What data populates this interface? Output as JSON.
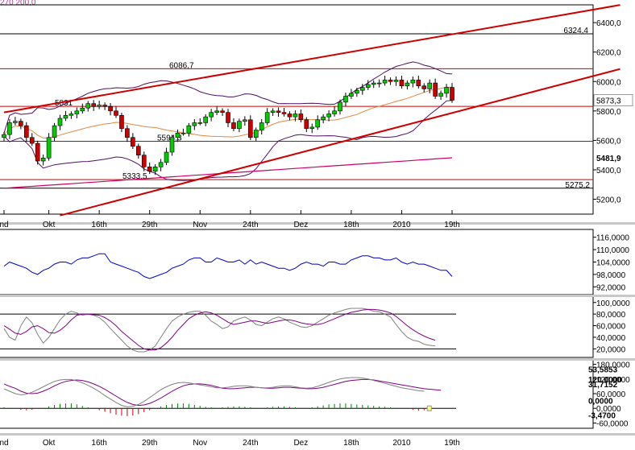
{
  "chart_data": [
    {
      "type": "candlestick",
      "header_text": "270  200,0",
      "header_color": "#c0309a",
      "y_ticks": [
        "6400,0",
        "6200,0",
        "6000,0",
        "5800,0",
        "5600,0",
        "5400,0",
        "5200,0"
      ],
      "y_tick_values": [
        6400,
        6200,
        6000,
        5800,
        5600,
        5400,
        5200
      ],
      "ylim": [
        5110,
        6510
      ],
      "x_ticks": [
        "nd",
        "Okt",
        "16th",
        "29th",
        "Nov",
        "24th",
        "Dez",
        "18th",
        "2010",
        "19th"
      ],
      "x_tick_index": [
        0,
        8,
        17,
        26,
        35,
        44,
        53,
        62,
        71,
        80
      ],
      "last_price_label": "5873,3",
      "ma200_label": "5481,9",
      "ma200_color": "#cc0066",
      "horizontal_levels": [
        {
          "value": 6324.4,
          "label": "6324,4",
          "color": "#000000"
        },
        {
          "value": 6086.7,
          "label": "6086,7",
          "color": "#cc0000"
        },
        {
          "value": 5831,
          "label": "5831",
          "color": "#cc0000"
        },
        {
          "value": 5594.3,
          "label": "5594,3",
          "color": "#cc0000"
        },
        {
          "value": 5333.5,
          "label": "5333,5",
          "color": "#cc0000"
        },
        {
          "value": 5275.2,
          "label": "5275,2",
          "color": "#000000"
        }
      ],
      "trend_lines": [
        {
          "from": [
            0,
            5790
          ],
          "to": [
            110,
            6520
          ],
          "color": "#cc0000"
        },
        {
          "from": [
            10,
            5090
          ],
          "to": [
            110,
            6085
          ],
          "color": "#cc0000"
        }
      ],
      "closes": [
        5640,
        5720,
        5730,
        5700,
        5620,
        5580,
        5460,
        5480,
        5620,
        5700,
        5750,
        5770,
        5780,
        5800,
        5820,
        5850,
        5830,
        5840,
        5830,
        5800,
        5770,
        5680,
        5620,
        5560,
        5500,
        5420,
        5390,
        5420,
        5450,
        5520,
        5620,
        5650,
        5650,
        5700,
        5720,
        5720,
        5760,
        5790,
        5800,
        5790,
        5720,
        5680,
        5730,
        5740,
        5620,
        5670,
        5720,
        5790,
        5800,
        5790,
        5780,
        5760,
        5780,
        5740,
        5680,
        5690,
        5740,
        5760,
        5780,
        5800,
        5860,
        5900,
        5920,
        5940,
        5960,
        5980,
        5990,
        5990,
        6010,
        6000,
        6010,
        5970,
        5990,
        6010,
        5970,
        5950,
        5990,
        5900,
        5920,
        5960,
        5873
      ]
    },
    {
      "type": "line",
      "indicator": "volume",
      "y_ticks": [
        "116,0000",
        "110,0000",
        "104,0000",
        "98,0000",
        "92,0000"
      ],
      "y_tick_values": [
        116,
        110,
        104,
        98,
        92
      ],
      "ylim": [
        89,
        119
      ],
      "line_color": "#0000cc",
      "values": [
        102,
        104,
        103,
        102,
        101,
        99,
        98,
        100,
        101,
        103,
        104,
        104,
        103,
        105,
        106,
        106,
        107,
        108,
        108,
        104,
        103,
        102,
        101,
        100,
        99,
        97,
        96,
        97,
        98,
        99,
        101,
        102,
        103,
        105,
        106,
        106,
        104,
        104,
        106,
        105,
        104,
        104,
        105,
        103,
        105,
        103,
        104,
        103,
        102,
        101,
        101,
        100,
        101,
        103,
        104,
        103,
        103,
        102,
        104,
        104,
        103,
        103,
        105,
        106,
        107,
        107,
        106,
        106,
        105,
        105,
        106,
        104,
        103,
        104,
        103,
        103,
        102,
        101,
        100,
        100,
        97
      ]
    },
    {
      "type": "line",
      "indicator": "stochastic",
      "y_ticks": [
        "100,0000",
        "80,0000",
        "60,0000",
        "40,0000",
        "20,0000"
      ],
      "y_tick_values": [
        100,
        80,
        60,
        40,
        20
      ],
      "ylim": [
        8,
        108
      ],
      "levels": [
        80,
        20
      ],
      "series": [
        {
          "color": "#808080",
          "values": [
            55,
            40,
            35,
            60,
            75,
            65,
            45,
            30,
            40,
            55,
            70,
            80,
            85,
            82,
            78,
            80,
            78,
            74,
            66,
            55,
            45,
            35,
            25,
            18,
            15,
            15,
            18,
            25,
            40,
            55,
            68,
            75,
            80,
            83,
            85,
            85,
            78,
            68,
            62,
            55,
            58,
            68,
            72,
            75,
            70,
            62,
            60,
            66,
            72,
            75,
            72,
            66,
            62,
            58,
            57,
            60,
            66,
            72,
            78,
            82,
            85,
            88,
            90,
            90,
            90,
            88,
            85,
            84,
            80,
            75,
            62,
            50,
            40,
            35,
            33,
            28,
            26,
            25
          ]
        },
        {
          "color": "#800080",
          "values": [
            60,
            54,
            47,
            45,
            50,
            58,
            60,
            55,
            48,
            47,
            52,
            60,
            70,
            78,
            80,
            80,
            79,
            78,
            74,
            68,
            60,
            50,
            42,
            34,
            26,
            20,
            18,
            18,
            22,
            30,
            40,
            52,
            62,
            72,
            78,
            82,
            84,
            82,
            78,
            72,
            66,
            62,
            64,
            66,
            68,
            68,
            66,
            64,
            66,
            68,
            70,
            70,
            68,
            65,
            63,
            62,
            62,
            64,
            68,
            72,
            76,
            80,
            83,
            85,
            87,
            88,
            88,
            87,
            85,
            82,
            76,
            68,
            60,
            53,
            47,
            42,
            38,
            35
          ]
        }
      ]
    },
    {
      "type": "macd",
      "y_ticks": [
        "180,0000",
        "120,0000",
        "60,0000",
        "0,0000",
        "-60,0000"
      ],
      "y_tick_values": [
        180,
        120,
        60,
        0,
        -60
      ],
      "ylim": [
        -75,
        195
      ],
      "value_labels": [
        {
          "text": "53,5853",
          "color": "#800080",
          "value": 160
        },
        {
          "text": "120,0000",
          "color": "#000000",
          "value": 120
        },
        {
          "text": "31,7152",
          "color": "#808080",
          "value": 100
        },
        {
          "text": "0,0000",
          "color": "#008000",
          "value": 32
        },
        {
          "text": "-3,4700",
          "color": "#cc0000",
          "value": -28
        }
      ],
      "series": [
        {
          "color": "#800080",
          "values": [
            100,
            90,
            82,
            70,
            62,
            60,
            62,
            70,
            80,
            92,
            102,
            110,
            114,
            116,
            114,
            108,
            100,
            90,
            78,
            64,
            50,
            36,
            24,
            16,
            12,
            14,
            20,
            30,
            42,
            56,
            70,
            82,
            92,
            98,
            100,
            100,
            98,
            94,
            88,
            82,
            80,
            80,
            82,
            84,
            86,
            86,
            84,
            82,
            82,
            84,
            86,
            86,
            84,
            82,
            80,
            80,
            82,
            86,
            92,
            98,
            104,
            110,
            114,
            116,
            118,
            118,
            116,
            112,
            108,
            104,
            100,
            96,
            92,
            88,
            84,
            80,
            78,
            76,
            74
          ]
        },
        {
          "color": "#808080",
          "values": [
            80,
            70,
            60,
            55,
            58,
            66,
            76,
            88,
            100,
            110,
            116,
            118,
            118,
            112,
            104,
            94,
            82,
            68,
            52,
            38,
            24,
            12,
            6,
            8,
            16,
            28,
            44,
            60,
            76,
            88,
            98,
            104,
            106,
            104,
            100,
            96,
            92,
            88,
            84,
            84,
            86,
            90,
            92,
            92,
            90,
            86,
            84,
            84,
            86,
            90,
            92,
            92,
            88,
            84,
            82,
            84,
            90,
            98,
            106,
            114,
            120,
            124,
            126,
            126,
            124,
            120,
            114,
            108,
            102,
            96,
            90,
            84,
            80,
            76,
            72,
            70
          ]
        },
        {
          "color": "#008000",
          "values": [
            4,
            2,
            -2,
            -6,
            -8,
            -6,
            -2,
            2,
            8,
            14,
            18,
            20,
            20,
            16,
            10,
            4,
            -2,
            -8,
            -14,
            -20,
            -26,
            -30,
            -32,
            -30,
            -24,
            -16,
            -8,
            0,
            8,
            14,
            18,
            20,
            20,
            18,
            14,
            10,
            6,
            4,
            2,
            4,
            6,
            8,
            8,
            6,
            4,
            2,
            2,
            4,
            6,
            8,
            8,
            6,
            4,
            2,
            2,
            4,
            8,
            12,
            16,
            18,
            20,
            20,
            18,
            16,
            14,
            12,
            10,
            8,
            6,
            4,
            2,
            0,
            -2,
            -6,
            -10,
            -8
          ]
        }
      ]
    }
  ]
}
